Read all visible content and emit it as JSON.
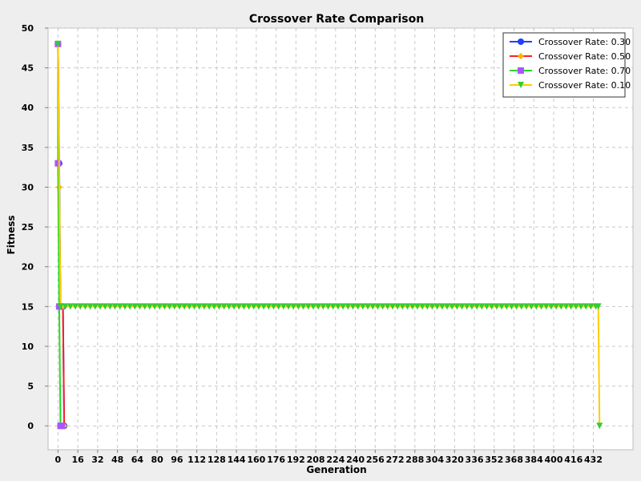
{
  "chart_data": {
    "type": "line",
    "title": "Crossover Rate Comparison",
    "xlabel": "Generation",
    "ylabel": "Fitness",
    "xlim": [
      -8,
      464
    ],
    "ylim": [
      -3,
      50
    ],
    "x_ticks": [
      0,
      16,
      32,
      48,
      64,
      80,
      96,
      112,
      128,
      144,
      160,
      176,
      192,
      208,
      224,
      240,
      256,
      272,
      288,
      304,
      320,
      336,
      352,
      368,
      384,
      400,
      416,
      432
    ],
    "y_ticks": [
      0,
      5,
      10,
      15,
      20,
      25,
      30,
      35,
      40,
      45,
      50
    ],
    "grid": true,
    "legend_position": "top-right",
    "series": [
      {
        "name": "Crossover Rate: 0.30",
        "color": "#1f3fff",
        "marker": "circle",
        "points": [
          [
            0,
            48
          ],
          [
            1,
            33
          ],
          [
            2,
            15
          ],
          [
            3,
            15
          ],
          [
            4,
            15
          ],
          [
            5,
            0
          ]
        ]
      },
      {
        "name": "Crossover Rate: 0.50",
        "color": "#ff1f1f",
        "marker_color": "#ffb000",
        "marker": "diamond",
        "points": [
          [
            0,
            48
          ],
          [
            1,
            30
          ],
          [
            2,
            15
          ],
          [
            3,
            15
          ],
          [
            4,
            15
          ],
          [
            5,
            0
          ]
        ]
      },
      {
        "name": "Crossover Rate: 0.70",
        "color": "#22dd22",
        "marker_color": "#aa55ff",
        "marker": "square",
        "points": [
          [
            0,
            48
          ],
          [
            0,
            33
          ],
          [
            1,
            15
          ],
          [
            2,
            0
          ],
          [
            3,
            0
          ]
        ]
      },
      {
        "name": "Crossover Rate: 0.10",
        "color": "#ffcc00",
        "marker_color": "#33cc33",
        "marker": "triangle-down",
        "points": [
          [
            0,
            48
          ],
          [
            2,
            15
          ],
          [
            436,
            15
          ],
          [
            437,
            0
          ]
        ]
      }
    ]
  }
}
